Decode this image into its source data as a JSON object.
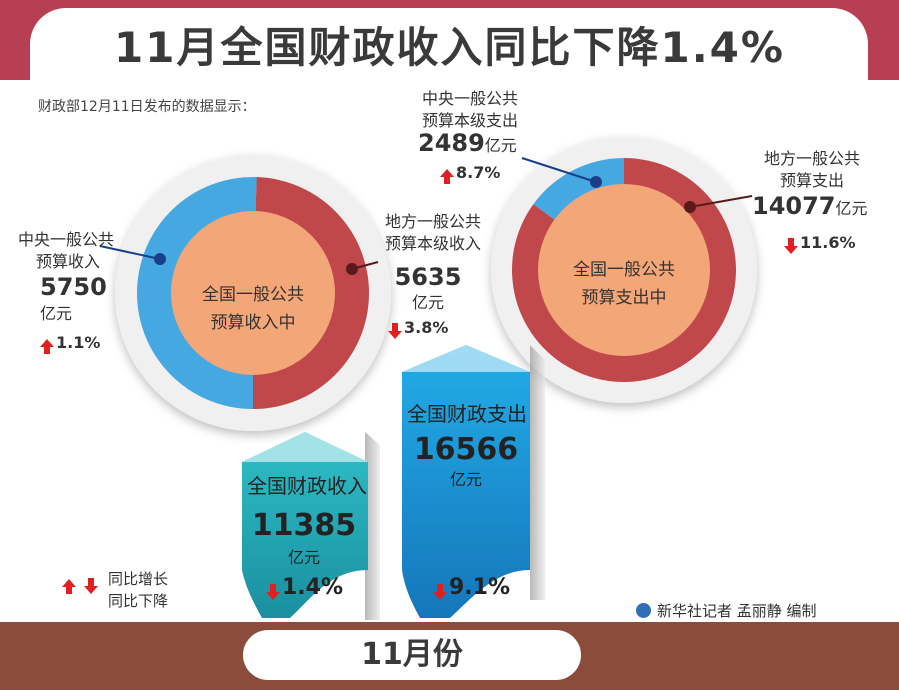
{
  "title": "11月全国财政收入同比下降1.4%",
  "intro": "财政部12月11日发布的数据显示：",
  "month_label": "11月份",
  "credit": "新华社记者 孟丽静 编制",
  "legend": {
    "up": "同比增长",
    "down": "同比下降"
  },
  "colors": {
    "red": "#c0474a",
    "blue": "#46a8e0",
    "core": "#f3a677",
    "header": "#b73f53",
    "footer": "#8c4c3c"
  },
  "chart_data": [
    {
      "type": "pie",
      "center_label": "全国一般公共预算收入中",
      "slices": [
        {
          "name": "中央一般公共预算收入",
          "value": 5750,
          "unit": "亿元",
          "change": "1.1%",
          "direction": "up"
        },
        {
          "name": "地方一般公共预算本级收入",
          "value": 5635,
          "unit": "亿元",
          "change": "3.8%",
          "direction": "down"
        }
      ]
    },
    {
      "type": "pie",
      "center_label": "全国一般公共预算支出中",
      "slices": [
        {
          "name": "中央一般公共预算本级支出",
          "value": 2489,
          "unit": "亿元",
          "change": "8.7%",
          "direction": "up"
        },
        {
          "name": "地方一般公共预算支出",
          "value": 14077,
          "unit": "亿元",
          "change": "11.6%",
          "direction": "down"
        }
      ]
    },
    {
      "type": "bar",
      "categories": [
        "全国财政收入",
        "全国财政支出"
      ],
      "values": [
        11385,
        16566
      ],
      "unit": "亿元",
      "changes": [
        "1.4%",
        "9.1%"
      ],
      "directions": [
        "down",
        "down"
      ]
    }
  ],
  "labels": {
    "income_center_1": "全国一般公共",
    "income_center_2": "预算收入中",
    "expense_center_1": "全国一般公共",
    "expense_center_2": "预算支出中",
    "central_income_1": "中央一般公共",
    "central_income_2": "预算收入",
    "local_income_1": "地方一般公共",
    "local_income_2": "预算本级收入",
    "central_exp_1": "中央一般公共",
    "central_exp_2": "预算本级支出",
    "local_exp_1": "地方一般公共",
    "local_exp_2": "预算支出"
  }
}
